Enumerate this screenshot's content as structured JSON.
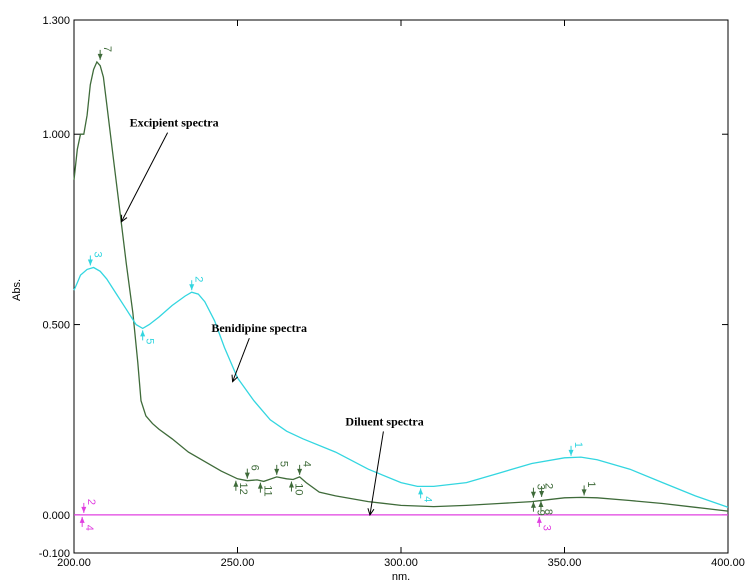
{
  "chart_data": {
    "type": "line",
    "xlabel": "nm.",
    "ylabel": "Abs.",
    "xlim": [
      200,
      400
    ],
    "ylim": [
      -0.1,
      1.3
    ],
    "x_ticks": [
      "200.00",
      "250.00",
      "300.00",
      "350.00",
      "400.00"
    ],
    "y_ticks": [
      "1.300",
      "1.000",
      "0.500",
      "0.000",
      "-0.100"
    ],
    "grid": false,
    "series": [
      {
        "color": "#3f6b3a",
        "points": [
          [
            200,
            0.88
          ],
          [
            201,
            0.96
          ],
          [
            202,
            1.0
          ],
          [
            203,
            1.0
          ],
          [
            204,
            1.05
          ],
          [
            205,
            1.13
          ],
          [
            206,
            1.17
          ],
          [
            207,
            1.19
          ],
          [
            208,
            1.18
          ],
          [
            209,
            1.15
          ],
          [
            210,
            1.08
          ],
          [
            212,
            0.94
          ],
          [
            214,
            0.8
          ],
          [
            216,
            0.66
          ],
          [
            218,
            0.53
          ],
          [
            219.5,
            0.4
          ],
          [
            220.5,
            0.3
          ],
          [
            222,
            0.26
          ],
          [
            224,
            0.24
          ],
          [
            226,
            0.225
          ],
          [
            230,
            0.2
          ],
          [
            235,
            0.165
          ],
          [
            240,
            0.14
          ],
          [
            245,
            0.115
          ],
          [
            250,
            0.095
          ],
          [
            253,
            0.09
          ],
          [
            256,
            0.092
          ],
          [
            258,
            0.088
          ],
          [
            262,
            0.1
          ],
          [
            265,
            0.095
          ],
          [
            267,
            0.093
          ],
          [
            269,
            0.1
          ],
          [
            271,
            0.085
          ],
          [
            275,
            0.06
          ],
          [
            280,
            0.05
          ],
          [
            290,
            0.035
          ],
          [
            300,
            0.025
          ],
          [
            310,
            0.022
          ],
          [
            320,
            0.025
          ],
          [
            330,
            0.03
          ],
          [
            340,
            0.035
          ],
          [
            345,
            0.04
          ],
          [
            350,
            0.045
          ],
          [
            355,
            0.046
          ],
          [
            360,
            0.045
          ],
          [
            370,
            0.038
          ],
          [
            380,
            0.03
          ],
          [
            390,
            0.02
          ],
          [
            400,
            0.01
          ]
        ]
      },
      {
        "color": "#33d6e0",
        "points": [
          [
            200,
            0.59
          ],
          [
            201,
            0.61
          ],
          [
            202,
            0.63
          ],
          [
            204,
            0.645
          ],
          [
            206,
            0.65
          ],
          [
            208,
            0.64
          ],
          [
            210,
            0.62
          ],
          [
            213,
            0.58
          ],
          [
            216,
            0.54
          ],
          [
            219,
            0.5
          ],
          [
            221,
            0.49
          ],
          [
            223,
            0.5
          ],
          [
            226,
            0.52
          ],
          [
            230,
            0.55
          ],
          [
            234,
            0.575
          ],
          [
            236,
            0.585
          ],
          [
            238,
            0.58
          ],
          [
            240,
            0.56
          ],
          [
            243,
            0.51
          ],
          [
            246,
            0.44
          ],
          [
            250,
            0.36
          ],
          [
            255,
            0.3
          ],
          [
            260,
            0.25
          ],
          [
            265,
            0.22
          ],
          [
            270,
            0.2
          ],
          [
            280,
            0.165
          ],
          [
            290,
            0.12
          ],
          [
            300,
            0.085
          ],
          [
            305,
            0.075
          ],
          [
            310,
            0.075
          ],
          [
            320,
            0.085
          ],
          [
            330,
            0.11
          ],
          [
            340,
            0.135
          ],
          [
            350,
            0.15
          ],
          [
            355,
            0.152
          ],
          [
            360,
            0.145
          ],
          [
            370,
            0.12
          ],
          [
            380,
            0.085
          ],
          [
            390,
            0.05
          ],
          [
            400,
            0.02
          ]
        ]
      },
      {
        "color": "#e040e0",
        "points": [
          [
            200,
            0.0
          ],
          [
            400,
            0.0
          ]
        ]
      }
    ],
    "peak_labels": [
      {
        "text": "7",
        "x": 208,
        "y": 1.19,
        "color": "#3f6b3a",
        "side": "above"
      },
      {
        "text": "6",
        "x": 253,
        "y": 0.09,
        "color": "#3f6b3a",
        "side": "above"
      },
      {
        "text": "5",
        "x": 262,
        "y": 0.1,
        "color": "#3f6b3a",
        "side": "above"
      },
      {
        "text": "4",
        "x": 269,
        "y": 0.1,
        "color": "#3f6b3a",
        "side": "above"
      },
      {
        "text": "3",
        "x": 340.5,
        "y": 0.04,
        "color": "#3f6b3a",
        "side": "above"
      },
      {
        "text": "2",
        "x": 343,
        "y": 0.042,
        "color": "#3f6b3a",
        "side": "above"
      },
      {
        "text": "1",
        "x": 356,
        "y": 0.046,
        "color": "#3f6b3a",
        "side": "above"
      },
      {
        "text": "12",
        "x": 249.5,
        "y": 0.095,
        "color": "#3f6b3a",
        "side": "below"
      },
      {
        "text": "11",
        "x": 257,
        "y": 0.09,
        "color": "#3f6b3a",
        "side": "below"
      },
      {
        "text": "10",
        "x": 266.5,
        "y": 0.093,
        "color": "#3f6b3a",
        "side": "below"
      },
      {
        "text": "9",
        "x": 340.5,
        "y": 0.04,
        "color": "#3f6b3a",
        "side": "below"
      },
      {
        "text": "8",
        "x": 342.8,
        "y": 0.042,
        "color": "#3f6b3a",
        "side": "below"
      },
      {
        "text": "3",
        "x": 205,
        "y": 0.65,
        "color": "#33d6e0",
        "side": "above"
      },
      {
        "text": "2",
        "x": 236,
        "y": 0.585,
        "color": "#33d6e0",
        "side": "above"
      },
      {
        "text": "1",
        "x": 352,
        "y": 0.15,
        "color": "#33d6e0",
        "side": "above"
      },
      {
        "text": "5",
        "x": 221,
        "y": 0.49,
        "color": "#33d6e0",
        "side": "below"
      },
      {
        "text": "4",
        "x": 306,
        "y": 0.075,
        "color": "#33d6e0",
        "side": "below"
      },
      {
        "text": "2",
        "x": 203,
        "y": 0.0,
        "color": "#e040e0",
        "side": "above"
      },
      {
        "text": "4",
        "x": 202.5,
        "y": 0.0,
        "color": "#e040e0",
        "side": "below"
      },
      {
        "text": "3",
        "x": 342.3,
        "y": 0.0,
        "color": "#e040e0",
        "side": "below"
      }
    ],
    "annotations": [
      {
        "text": "Excipient spectra",
        "x": 217,
        "y": 1.02,
        "target": [
          214.5,
          0.77
        ]
      },
      {
        "text": "Benidipine spectra",
        "x": 242,
        "y": 0.48,
        "target": [
          248.5,
          0.35
        ]
      },
      {
        "text": "Diluent spectra",
        "x": 283,
        "y": 0.235,
        "target": [
          290.5,
          0.0
        ]
      }
    ]
  }
}
